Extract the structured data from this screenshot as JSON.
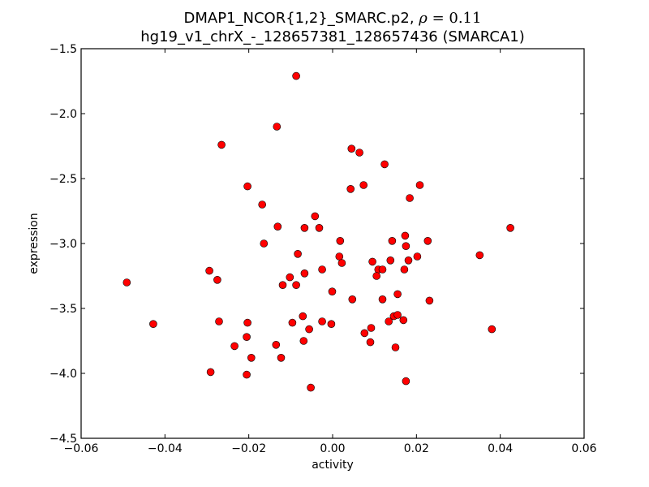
{
  "title": {
    "line1_prefix": "DMAP1_NCOR{1,2}_SMARC.p2, ",
    "rho_symbol": "ρ",
    "rho_eq": " = 0.11",
    "line2": "hg19_v1_chrX_-_128657381_128657436 (SMARCA1)"
  },
  "axes": {
    "xlabel": "activity",
    "ylabel": "expression",
    "xticks": [
      "−0.06",
      "−0.04",
      "−0.02",
      "0.00",
      "0.02",
      "0.04",
      "0.06"
    ],
    "yticks": [
      "−1.5",
      "−2.0",
      "−2.5",
      "−3.0",
      "−3.5",
      "−4.0",
      "−4.5"
    ]
  },
  "colors": {
    "marker_fill": "#ff0000",
    "marker_edge": "#000000",
    "axis": "#000000"
  },
  "chart_data": {
    "type": "scatter",
    "title": "DMAP1_NCOR{1,2}_SMARC.p2, ρ = 0.11 / hg19_v1_chrX_-_128657381_128657436 (SMARCA1)",
    "xlabel": "activity",
    "ylabel": "expression",
    "xlim": [
      -0.06,
      0.06
    ],
    "ylim": [
      -4.5,
      -1.5
    ],
    "grid": false,
    "legend": null,
    "series": [
      {
        "name": "samples",
        "points": [
          [
            -0.0491,
            -3.3
          ],
          [
            -0.0428,
            -3.62
          ],
          [
            -0.0265,
            -2.24
          ],
          [
            -0.0203,
            -2.56
          ],
          [
            -0.0294,
            -3.21
          ],
          [
            -0.0275,
            -3.28
          ],
          [
            -0.0271,
            -3.6
          ],
          [
            -0.0203,
            -3.61
          ],
          [
            -0.0205,
            -3.72
          ],
          [
            -0.0234,
            -3.79
          ],
          [
            -0.0194,
            -3.88
          ],
          [
            -0.0291,
            -3.99
          ],
          [
            -0.0205,
            -4.01
          ],
          [
            -0.0087,
            -1.71
          ],
          [
            -0.0133,
            -2.1
          ],
          [
            -0.0168,
            -2.7
          ],
          [
            -0.0131,
            -2.87
          ],
          [
            -0.0164,
            -3.0
          ],
          [
            -0.0042,
            -2.79
          ],
          [
            -0.0067,
            -2.88
          ],
          [
            -0.0032,
            -2.88
          ],
          [
            0.0045,
            -2.27
          ],
          [
            0.0064,
            -2.3
          ],
          [
            0.0124,
            -2.39
          ],
          [
            0.0043,
            -2.58
          ],
          [
            0.0074,
            -2.55
          ],
          [
            0.0208,
            -2.55
          ],
          [
            0.0184,
            -2.65
          ],
          [
            0.0424,
            -2.88
          ],
          [
            0.0018,
            -2.98
          ],
          [
            -0.0083,
            -3.08
          ],
          [
            0.0016,
            -3.1
          ],
          [
            0.0022,
            -3.15
          ],
          [
            -0.0025,
            -3.2
          ],
          [
            -0.0067,
            -3.23
          ],
          [
            -0.0102,
            -3.26
          ],
          [
            -0.0119,
            -3.32
          ],
          [
            -0.0087,
            -3.32
          ],
          [
            -0.0001,
            -3.37
          ],
          [
            0.0047,
            -3.43
          ],
          [
            -0.0071,
            -3.56
          ],
          [
            -0.0096,
            -3.61
          ],
          [
            -0.0025,
            -3.6
          ],
          [
            -0.0003,
            -3.62
          ],
          [
            -0.0056,
            -3.66
          ],
          [
            -0.0135,
            -3.78
          ],
          [
            -0.0069,
            -3.75
          ],
          [
            -0.0123,
            -3.88
          ],
          [
            -0.0052,
            -4.11
          ],
          [
            0.0142,
            -2.98
          ],
          [
            0.0173,
            -2.94
          ],
          [
            0.0175,
            -3.02
          ],
          [
            0.0227,
            -2.98
          ],
          [
            0.0202,
            -3.1
          ],
          [
            0.0095,
            -3.14
          ],
          [
            0.0138,
            -3.13
          ],
          [
            0.0181,
            -3.13
          ],
          [
            0.0109,
            -3.2
          ],
          [
            0.0119,
            -3.2
          ],
          [
            0.0171,
            -3.2
          ],
          [
            0.0105,
            -3.25
          ],
          [
            0.0155,
            -3.39
          ],
          [
            0.0119,
            -3.43
          ],
          [
            0.0231,
            -3.44
          ],
          [
            0.0146,
            -3.56
          ],
          [
            0.0155,
            -3.55
          ],
          [
            0.0134,
            -3.6
          ],
          [
            0.0169,
            -3.59
          ],
          [
            0.0092,
            -3.65
          ],
          [
            0.0076,
            -3.69
          ],
          [
            0.009,
            -3.76
          ],
          [
            0.015,
            -3.8
          ],
          [
            0.0175,
            -4.06
          ],
          [
            0.0351,
            -3.09
          ],
          [
            0.038,
            -3.66
          ]
        ]
      }
    ],
    "annotations": [
      "ρ = 0.11"
    ]
  }
}
